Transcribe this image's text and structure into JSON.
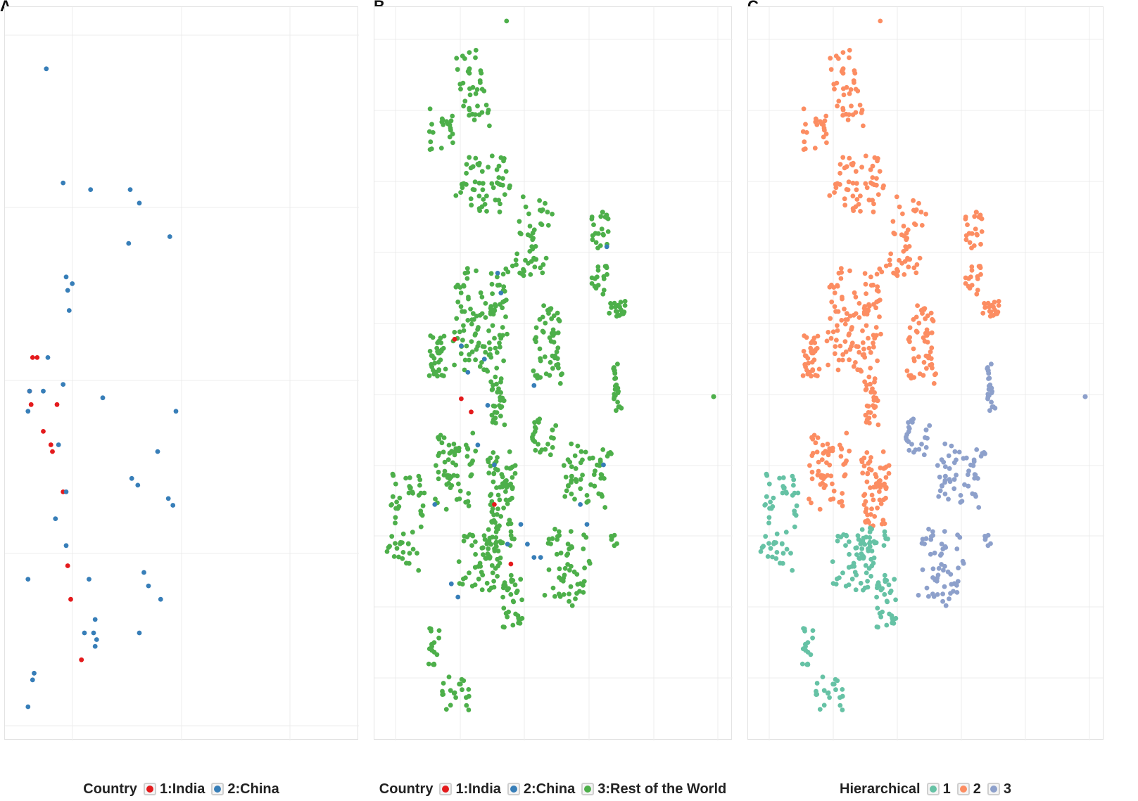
{
  "colors": {
    "india": "#e41a1c",
    "china": "#377eb8",
    "rest": "#4daf4a",
    "h1": "#66c2a5",
    "h2": "#fc8d62",
    "h3": "#8da0cb"
  },
  "panels": {
    "A": {
      "letter": "A",
      "legend_title": "Country",
      "legend": [
        "1:India",
        "2:China"
      ]
    },
    "B": {
      "letter": "B",
      "legend_title": "Country",
      "legend": [
        "1:India",
        "2:China",
        "3:Rest of the World"
      ]
    },
    "C": {
      "letter": "C",
      "legend_title": "Hierarchical",
      "legend": [
        "1",
        "2",
        "3"
      ]
    }
  },
  "chart_data": [
    {
      "type": "scatter",
      "title": "",
      "xlabel": "",
      "ylabel": "",
      "legend_title": "Country",
      "grid": true,
      "legend_position": "bottom",
      "series": [
        {
          "name": "1:India",
          "color": "#e41a1c",
          "x": [
            0.08,
            0.11,
            0.06,
            0.07,
            0.24,
            0.15,
            0.2,
            0.21,
            0.28,
            0.31,
            0.33,
            0.4
          ],
          "y": [
            0.48,
            0.48,
            0.53,
            0.55,
            0.55,
            0.59,
            0.61,
            0.62,
            0.68,
            0.79,
            0.84,
            0.93
          ]
        },
        {
          "name": "2:China",
          "color": "#377eb8",
          "x": [
            0.17,
            0.28,
            0.46,
            0.72,
            0.78,
            0.71,
            0.98,
            0.3,
            0.31,
            0.34,
            0.32,
            0.18,
            0.15,
            0.06,
            0.05,
            0.28,
            0.54,
            1.02,
            0.25,
            0.9,
            0.3,
            0.73,
            0.77,
            0.97,
            1.0,
            0.23,
            0.3,
            0.05,
            0.45,
            0.81,
            0.84,
            0.92,
            0.49,
            0.48,
            0.42,
            0.5,
            0.49,
            0.78,
            0.09,
            0.08,
            0.05
          ],
          "y": [
            0.05,
            0.22,
            0.23,
            0.23,
            0.25,
            0.31,
            0.3,
            0.36,
            0.38,
            0.37,
            0.41,
            0.48,
            0.53,
            0.53,
            0.56,
            0.52,
            0.54,
            0.56,
            0.61,
            0.62,
            0.68,
            0.66,
            0.67,
            0.69,
            0.7,
            0.72,
            0.76,
            0.81,
            0.81,
            0.8,
            0.82,
            0.84,
            0.87,
            0.89,
            0.89,
            0.9,
            0.91,
            0.89,
            0.95,
            0.96,
            1.0
          ]
        }
      ]
    },
    {
      "type": "scatter",
      "title": "",
      "xlabel": "",
      "ylabel": "",
      "legend_title": "Country",
      "grid": true,
      "legend_position": "bottom",
      "series": [
        {
          "name": "1:India",
          "color": "#e41a1c",
          "x": [
            0.2,
            0.22,
            0.25,
            0.32,
            0.37
          ],
          "y": [
            0.46,
            0.55,
            0.57,
            0.71,
            0.8
          ]
        },
        {
          "name": "2:China",
          "color": "#377eb8",
          "x": [
            0.33,
            0.34,
            0.22,
            0.24,
            0.29,
            0.3,
            0.44,
            0.66,
            0.27,
            0.32,
            0.65,
            0.14,
            0.4,
            0.46,
            0.58,
            0.6,
            0.19,
            0.21,
            0.36,
            0.42,
            0.44
          ],
          "y": [
            0.36,
            0.39,
            0.47,
            0.51,
            0.49,
            0.56,
            0.53,
            0.32,
            0.62,
            0.65,
            0.65,
            0.71,
            0.74,
            0.79,
            0.71,
            0.74,
            0.83,
            0.85,
            0.77,
            0.77,
            0.79
          ]
        },
        {
          "name": "3:Rest of the World",
          "color": "#4daf4a",
          "clusters": "dense point clouds forming ~14 elongated groups; one isolated point at far right (x≈0.97, y≈0.50)"
        }
      ]
    },
    {
      "type": "scatter",
      "title": "",
      "xlabel": "",
      "ylabel": "",
      "legend_title": "Hierarchical",
      "grid": true,
      "legend_position": "bottom",
      "series": [
        {
          "name": "1",
          "color": "#66c2a5",
          "clusters": "lower-left region: bottom two-thirds of left groups"
        },
        {
          "name": "2",
          "color": "#fc8d62",
          "clusters": "upper region and middle-left groups"
        },
        {
          "name": "3",
          "color": "#8da0cb",
          "clusters": "lower-right region; one isolated point at far right"
        }
      ]
    }
  ]
}
